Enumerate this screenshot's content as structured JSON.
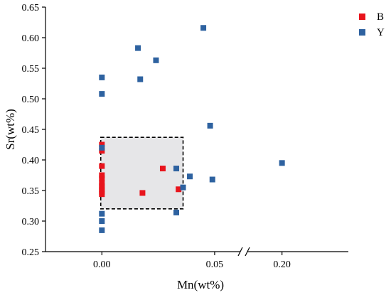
{
  "chart_data": {
    "type": "scatter",
    "title": "",
    "xlabel": "Mn(wt%)",
    "ylabel": "Sr(wt%)",
    "x_axis": {
      "break": true,
      "segments": [
        {
          "range": [
            -0.025,
            0.062
          ],
          "ticks": [
            0.0,
            0.05
          ],
          "tick_labels": [
            "0.00",
            "0.05"
          ]
        },
        {
          "range": [
            0.15,
            0.3
          ],
          "ticks": [
            0.2
          ],
          "tick_labels": [
            "0.20"
          ]
        }
      ]
    },
    "ylim": [
      0.25,
      0.65
    ],
    "yticks": [
      0.25,
      0.3,
      0.35,
      0.4,
      0.45,
      0.5,
      0.55,
      0.6,
      0.65
    ],
    "ytick_labels": [
      "0.25",
      "0.30",
      "0.35",
      "0.40",
      "0.45",
      "0.50",
      "0.55",
      "0.60",
      "0.65"
    ],
    "grid": false,
    "legend_position": "top-right",
    "highlight_region": {
      "x": [
        -0.0005,
        0.036
      ],
      "y": [
        0.32,
        0.437
      ],
      "style": "dashed",
      "fill": "#e6e6e8"
    },
    "series": [
      {
        "name": "B",
        "color": "#e8141c",
        "marker": "square",
        "points": [
          {
            "x": 0,
            "y": 0.425
          },
          {
            "x": 0,
            "y": 0.415
          },
          {
            "x": 0,
            "y": 0.39
          },
          {
            "x": 0,
            "y": 0.375
          },
          {
            "x": 0,
            "y": 0.37
          },
          {
            "x": 0,
            "y": 0.362
          },
          {
            "x": 0,
            "y": 0.357
          },
          {
            "x": 0,
            "y": 0.352
          },
          {
            "x": 0,
            "y": 0.348
          },
          {
            "x": 0,
            "y": 0.344
          },
          {
            "x": 0.018,
            "y": 0.346
          },
          {
            "x": 0.027,
            "y": 0.386
          },
          {
            "x": 0.034,
            "y": 0.352
          }
        ]
      },
      {
        "name": "Y",
        "color": "#2e62a0",
        "marker": "square",
        "points": [
          {
            "x": 0,
            "y": 0.535
          },
          {
            "x": 0,
            "y": 0.508
          },
          {
            "x": 0,
            "y": 0.42
          },
          {
            "x": 0,
            "y": 0.312
          },
          {
            "x": 0,
            "y": 0.3
          },
          {
            "x": 0,
            "y": 0.285
          },
          {
            "x": 0.016,
            "y": 0.583
          },
          {
            "x": 0.017,
            "y": 0.532
          },
          {
            "x": 0.024,
            "y": 0.563
          },
          {
            "x": 0.033,
            "y": 0.386
          },
          {
            "x": 0.033,
            "y": 0.314
          },
          {
            "x": 0.036,
            "y": 0.355
          },
          {
            "x": 0.039,
            "y": 0.373
          },
          {
            "x": 0.045,
            "y": 0.616
          },
          {
            "x": 0.048,
            "y": 0.456
          },
          {
            "x": 0.049,
            "y": 0.368
          },
          {
            "x": 0.2,
            "y": 0.395
          }
        ]
      }
    ]
  }
}
